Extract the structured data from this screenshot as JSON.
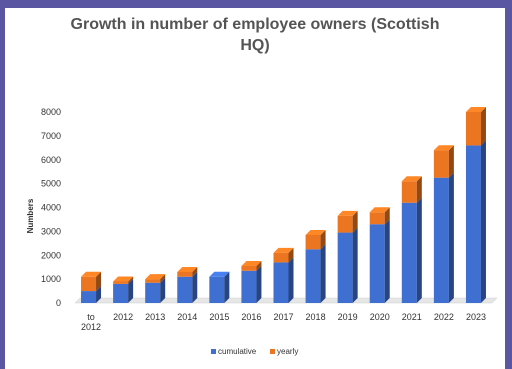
{
  "chart_data": {
    "type": "bar",
    "stacked": true,
    "title_line1": "Growth in number of employee owners (Scottish",
    "title_line2": "HQ)",
    "ylabel": "Numbers",
    "xlabel": "",
    "ylim": [
      0,
      8000
    ],
    "yticks": [
      0,
      1000,
      2000,
      3000,
      4000,
      5000,
      6000,
      7000,
      8000
    ],
    "categories": [
      "to 2012",
      "2012",
      "2013",
      "2014",
      "2015",
      "2016",
      "2017",
      "2018",
      "2019",
      "2020",
      "2021",
      "2022",
      "2023"
    ],
    "series": [
      {
        "name": "cumulative",
        "color": "#3f6fd0",
        "values": [
          500,
          800,
          850,
          1100,
          1100,
          1350,
          1700,
          2250,
          2950,
          3300,
          4200,
          5250,
          6600
        ]
      },
      {
        "name": "yearly",
        "color": "#ec7521",
        "values": [
          600,
          100,
          150,
          200,
          0,
          200,
          400,
          600,
          700,
          500,
          900,
          1150,
          1400
        ]
      }
    ],
    "legend_position": "bottom",
    "grid": false
  }
}
